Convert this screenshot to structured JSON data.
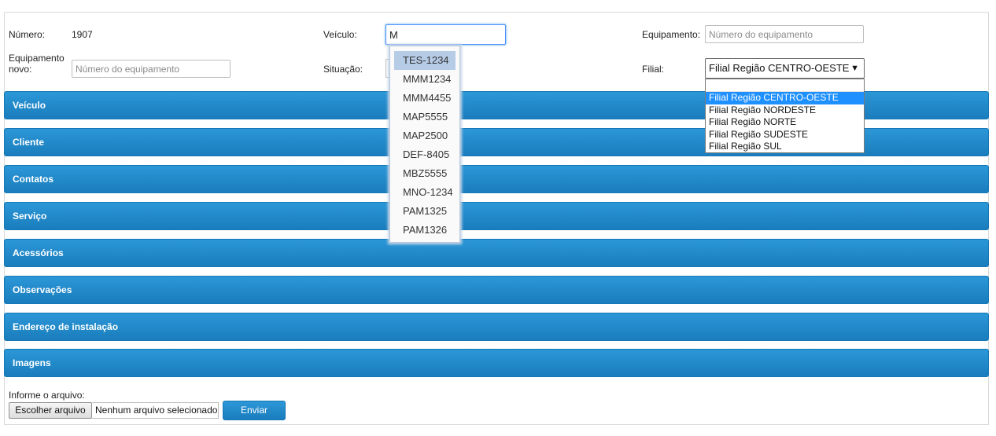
{
  "form": {
    "numero_label": "Número:",
    "numero_value": "1907",
    "veiculo_label": "Veículo:",
    "veiculo_value": "M",
    "equipamento_label": "Equipamento:",
    "equipamento_placeholder": "Número do equipamento",
    "equipamento_novo_label_line1": "Equipamento",
    "equipamento_novo_label_line2": "novo:",
    "equipamento_novo_placeholder": "Número do equipamento",
    "situacao_label": "Situação:",
    "filial_label": "Filial:",
    "filial_selected": "Filial Região CENTRO-OESTE"
  },
  "autocomplete": {
    "items": [
      "TES-1234",
      "MMM1234",
      "MMM4455",
      "MAP5555",
      "MAP2500",
      "DEF-8405",
      "MBZ5555",
      "MNO-1234",
      "PAM1325",
      "PAM1326"
    ],
    "active_index": 0
  },
  "filial_dropdown": {
    "options": [
      "Filial Região CENTRO-OESTE",
      "Filial Região NORDESTE",
      "Filial Região NORTE",
      "Filial Região SUDESTE",
      "Filial Região SUL"
    ],
    "selected_index": 0
  },
  "sections": [
    "Veículo",
    "Cliente",
    "Contatos",
    "Serviço",
    "Acessórios",
    "Observações",
    "Endereço de instalação",
    "Imagens"
  ],
  "upload": {
    "label": "Informe o arquivo:",
    "choose_button": "Escolher arquivo",
    "status": "Nenhum arquivo selecionado",
    "send_button": "Enviar"
  },
  "colors": {
    "bar_blue": "#1a7dbd",
    "focus_blue": "#4d90fe",
    "autocomplete_active": "#b5cbe6",
    "dropdown_selected": "#1e90ff"
  }
}
